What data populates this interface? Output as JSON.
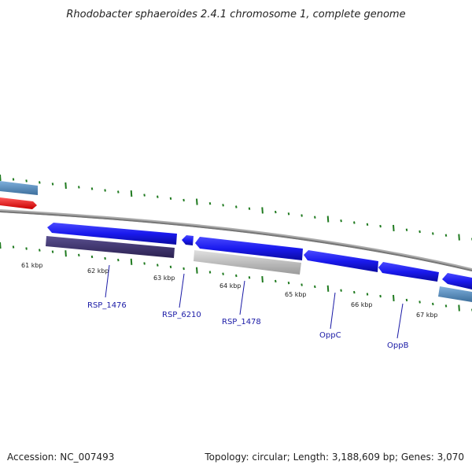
{
  "title": "Rhodobacter sphaeroides 2.4.1 chromosome 1, complete genome",
  "footer": {
    "accession": "Accession: NC_007493",
    "topology": "Topology: circular; Length: 3,188,609 bp; Genes: 3,070"
  },
  "scale_labels": [
    "61 kbp",
    "62 kbp",
    "63 kbp",
    "64 kbp",
    "65 kbp",
    "66 kbp",
    "67 kbp"
  ],
  "genes": [
    {
      "name": "RSP_1476",
      "strand": "reverse",
      "color": "#1a1aee",
      "product_color": "#3a3070"
    },
    {
      "name": "RSP_6210",
      "strand": "reverse",
      "color": "#1a1aee"
    },
    {
      "name": "RSP_1478",
      "strand": "forward",
      "color": "#1a1aee",
      "product_color": "#aaaaaa"
    },
    {
      "name": "OppC",
      "strand": "reverse",
      "color": "#1a1aee"
    },
    {
      "name": "OppB",
      "strand": "reverse",
      "color": "#1a1aee"
    }
  ],
  "colors": {
    "backbone": "#777777",
    "ticks": "#1f7a1f",
    "gene": "#1a1aee",
    "rna": "#ee1111",
    "product_light": "#4f86b8",
    "label": "#1a1aa6"
  }
}
